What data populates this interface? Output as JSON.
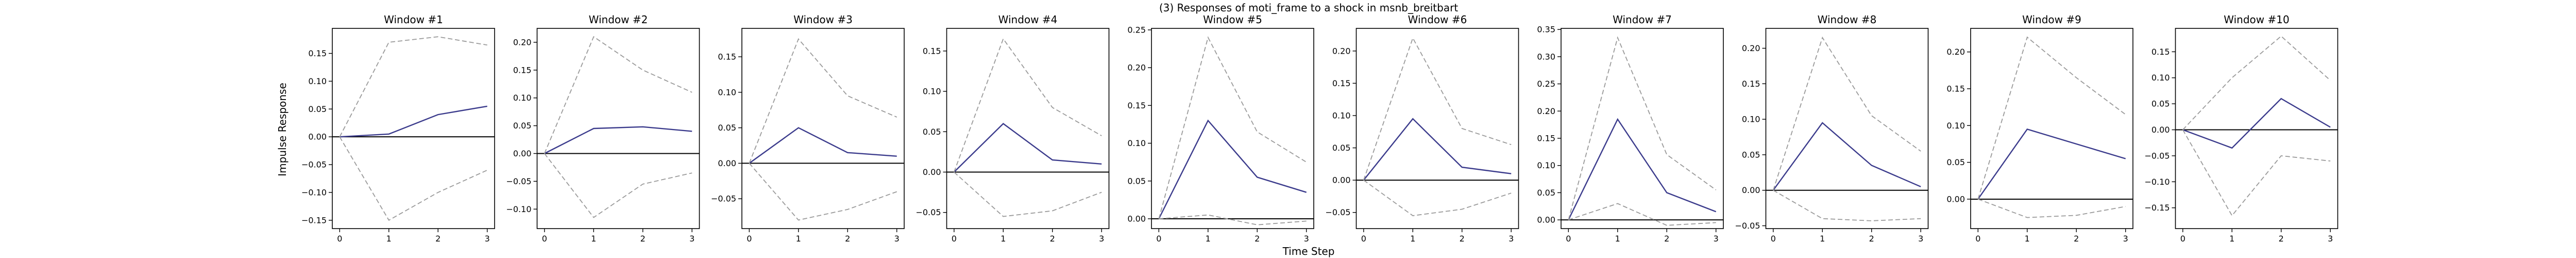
{
  "figure": {
    "suptitle": "(3) Responses of moti_frame to a shock in msnb_breitbart",
    "xlabel": "Time Step",
    "ylabel": "Impulse Response"
  },
  "colors": {
    "response": "#3b3b8c",
    "bands": "#9a9a9a",
    "zero": "#000000",
    "frame": "#000000"
  },
  "chart_data": [
    {
      "type": "line",
      "title": "Window #1",
      "x": [
        0,
        1,
        2,
        3
      ],
      "ylim": [
        -0.165,
        0.195
      ],
      "yticks": [
        -0.15,
        -0.1,
        -0.05,
        0.0,
        0.05,
        0.1,
        0.15
      ],
      "series": [
        {
          "values": [
            0.0,
            0.005,
            0.04,
            0.055
          ]
        },
        {
          "values": [
            0.0,
            0.17,
            0.18,
            0.165
          ]
        },
        {
          "values": [
            0.0,
            -0.15,
            -0.1,
            -0.06
          ]
        }
      ]
    },
    {
      "type": "line",
      "title": "Window #2",
      "x": [
        0,
        1,
        2,
        3
      ],
      "ylim": [
        -0.135,
        0.225
      ],
      "yticks": [
        -0.1,
        -0.05,
        0.0,
        0.05,
        0.1,
        0.15,
        0.2
      ],
      "series": [
        {
          "values": [
            0.0,
            0.045,
            0.048,
            0.04
          ]
        },
        {
          "values": [
            0.0,
            0.21,
            0.15,
            0.11
          ]
        },
        {
          "values": [
            0.0,
            -0.115,
            -0.055,
            -0.035
          ]
        }
      ]
    },
    {
      "type": "line",
      "title": "Window #3",
      "x": [
        0,
        1,
        2,
        3
      ],
      "ylim": [
        -0.092,
        0.19
      ],
      "yticks": [
        -0.05,
        0.0,
        0.05,
        0.1,
        0.15
      ],
      "series": [
        {
          "values": [
            0.0,
            0.05,
            0.015,
            0.01
          ]
        },
        {
          "values": [
            0.0,
            0.175,
            0.095,
            0.065
          ]
        },
        {
          "values": [
            0.0,
            -0.08,
            -0.065,
            -0.04
          ]
        }
      ]
    },
    {
      "type": "line",
      "title": "Window #4",
      "x": [
        0,
        1,
        2,
        3
      ],
      "ylim": [
        -0.07,
        0.178
      ],
      "yticks": [
        -0.05,
        0.0,
        0.05,
        0.1,
        0.15
      ],
      "series": [
        {
          "values": [
            0.0,
            0.06,
            0.015,
            0.01
          ]
        },
        {
          "values": [
            0.0,
            0.165,
            0.08,
            0.045
          ]
        },
        {
          "values": [
            0.0,
            -0.055,
            -0.048,
            -0.025
          ]
        }
      ]
    },
    {
      "type": "line",
      "title": "Window #5",
      "x": [
        0,
        1,
        2,
        3
      ],
      "ylim": [
        -0.013,
        0.252
      ],
      "yticks": [
        0.0,
        0.05,
        0.1,
        0.15,
        0.2,
        0.25
      ],
      "series": [
        {
          "values": [
            0.0,
            0.13,
            0.055,
            0.035
          ]
        },
        {
          "values": [
            0.0,
            0.24,
            0.115,
            0.075
          ]
        },
        {
          "values": [
            0.0,
            0.005,
            -0.008,
            -0.003
          ]
        }
      ]
    },
    {
      "type": "line",
      "title": "Window #6",
      "x": [
        0,
        1,
        2,
        3
      ],
      "ylim": [
        -0.075,
        0.235
      ],
      "yticks": [
        -0.05,
        0.0,
        0.05,
        0.1,
        0.15,
        0.2
      ],
      "series": [
        {
          "values": [
            0.0,
            0.095,
            0.02,
            0.01
          ]
        },
        {
          "values": [
            0.0,
            0.22,
            0.08,
            0.055
          ]
        },
        {
          "values": [
            0.0,
            -0.055,
            -0.045,
            -0.02
          ]
        }
      ]
    },
    {
      "type": "line",
      "title": "Window #7",
      "x": [
        0,
        1,
        2,
        3
      ],
      "ylim": [
        -0.016,
        0.352
      ],
      "yticks": [
        0.0,
        0.05,
        0.1,
        0.15,
        0.2,
        0.25,
        0.3,
        0.35
      ],
      "series": [
        {
          "values": [
            0.0,
            0.185,
            0.05,
            0.015
          ]
        },
        {
          "values": [
            0.0,
            0.335,
            0.12,
            0.055
          ]
        },
        {
          "values": [
            0.0,
            0.03,
            -0.01,
            -0.005
          ]
        }
      ]
    },
    {
      "type": "line",
      "title": "Window #8",
      "x": [
        0,
        1,
        2,
        3
      ],
      "ylim": [
        -0.054,
        0.228
      ],
      "yticks": [
        -0.05,
        0.0,
        0.05,
        0.1,
        0.15,
        0.2
      ],
      "series": [
        {
          "values": [
            0.0,
            0.095,
            0.035,
            0.005
          ]
        },
        {
          "values": [
            0.0,
            0.215,
            0.105,
            0.055
          ]
        },
        {
          "values": [
            0.0,
            -0.04,
            -0.043,
            -0.04
          ]
        }
      ]
    },
    {
      "type": "line",
      "title": "Window #9",
      "x": [
        0,
        1,
        2,
        3
      ],
      "ylim": [
        -0.04,
        0.232
      ],
      "yticks": [
        0.0,
        0.05,
        0.1,
        0.15,
        0.2
      ],
      "series": [
        {
          "values": [
            0.0,
            0.095,
            0.075,
            0.055
          ]
        },
        {
          "values": [
            0.0,
            0.22,
            0.165,
            0.115
          ]
        },
        {
          "values": [
            0.0,
            -0.025,
            -0.022,
            -0.01
          ]
        }
      ]
    },
    {
      "type": "line",
      "title": "Window #10",
      "x": [
        0,
        1,
        2,
        3
      ],
      "ylim": [
        -0.19,
        0.195
      ],
      "yticks": [
        -0.15,
        -0.1,
        -0.05,
        0.0,
        0.05,
        0.1,
        0.15
      ],
      "series": [
        {
          "values": [
            0.0,
            -0.035,
            0.06,
            0.005
          ]
        },
        {
          "values": [
            0.0,
            0.1,
            0.18,
            0.095
          ]
        },
        {
          "values": [
            0.0,
            -0.165,
            -0.05,
            -0.06
          ]
        }
      ]
    }
  ]
}
